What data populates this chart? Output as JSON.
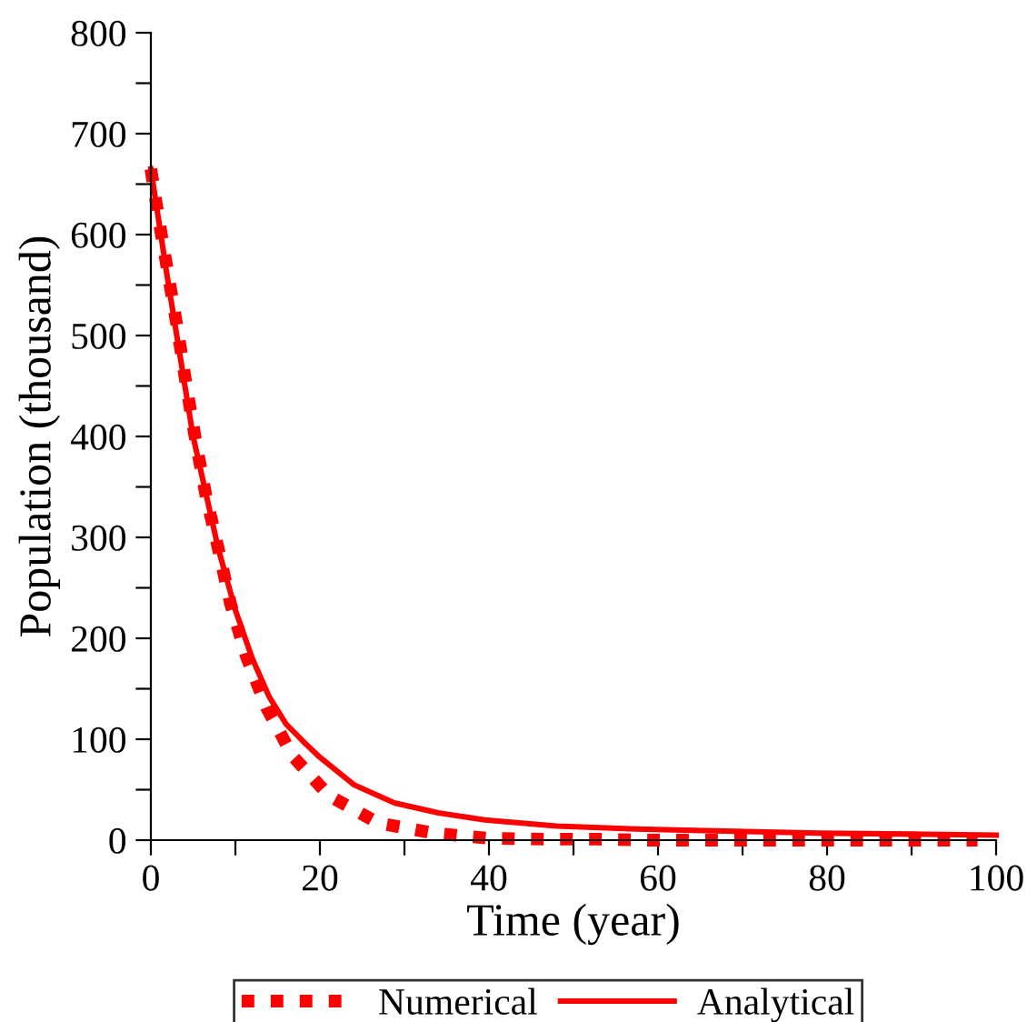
{
  "chart_data": {
    "type": "line",
    "xlabel": "Time (year)",
    "ylabel": "Population (thousand)",
    "xlim": [
      0,
      100
    ],
    "ylim": [
      0,
      800
    ],
    "xticks": [
      0,
      {
        "value": 10,
        "label": null
      },
      20,
      {
        "value": 30,
        "label": null
      },
      40,
      {
        "value": 50,
        "label": null
      },
      60,
      {
        "value": 70,
        "label": null
      },
      80,
      {
        "value": 90,
        "label": null
      },
      100
    ],
    "yticks": [
      0,
      {
        "value": 50,
        "label": null
      },
      100,
      {
        "value": 150,
        "label": null
      },
      200,
      {
        "value": 250,
        "label": null
      },
      300,
      {
        "value": 350,
        "label": null
      },
      400,
      {
        "value": 450,
        "label": null
      },
      500,
      {
        "value": 550,
        "label": null
      },
      600,
      {
        "value": 650,
        "label": null
      },
      700,
      {
        "value": 750,
        "label": null
      },
      800
    ],
    "grid": false,
    "legend": "bottom",
    "series": [
      {
        "name": "Numerical",
        "color": "#ff0000",
        "line_style": "dotted",
        "x": [
          0,
          1.0,
          2.1,
          3.2,
          4.2,
          5.3,
          6.5,
          8.0,
          9.4,
          11.3,
          13.7,
          16.8,
          21.1,
          26.9,
          33.4,
          39.8,
          46.3,
          52.7,
          59.1,
          65.6,
          72.0,
          78.5,
          84.9,
          91.4,
          97.8
        ],
        "values": [
          665,
          612,
          558,
          504,
          450,
          396,
          342,
          288,
          235,
          182,
          131,
          83,
          44,
          17,
          7,
          2,
          1,
          1,
          0,
          0,
          0,
          0,
          0,
          0,
          0
        ]
      },
      {
        "name": "Analytical",
        "color": "#ff0000",
        "line_style": "solid",
        "x": [
          0,
          2,
          5,
          8,
          10,
          12,
          14,
          16,
          18,
          20,
          24,
          28.8,
          34,
          39.5,
          48,
          57.4,
          68,
          78.9,
          90,
          100
        ],
        "values": [
          665,
          555,
          400,
          288,
          228,
          180,
          142,
          115,
          98,
          82,
          55,
          37,
          27,
          20,
          14,
          11,
          9,
          7,
          6,
          5
        ]
      }
    ]
  }
}
